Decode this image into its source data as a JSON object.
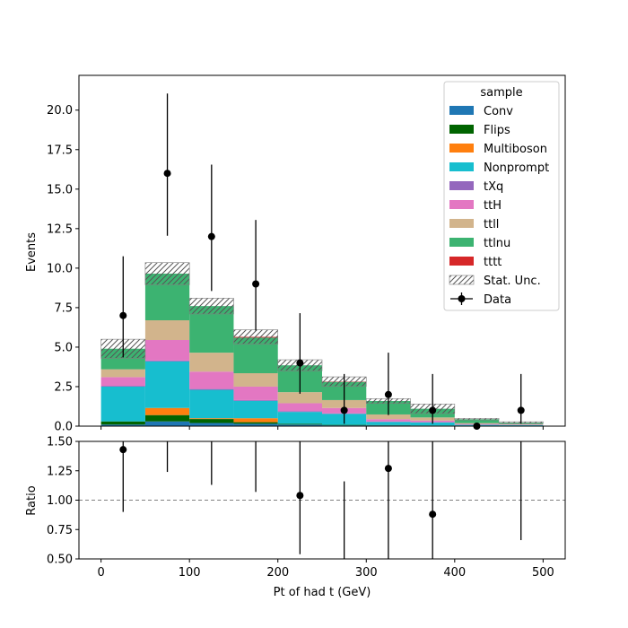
{
  "chart_data": [
    {
      "type": "bar",
      "stacked": true,
      "histogram": true,
      "bin_edges": [
        0,
        50,
        100,
        150,
        200,
        250,
        300,
        350,
        400,
        450,
        500
      ],
      "xlim": [
        -25,
        525
      ],
      "ylim": [
        0,
        22.2
      ],
      "xlabel": "",
      "ylabel": "Events",
      "yticks": [
        0.0,
        2.5,
        5.0,
        7.5,
        10.0,
        12.5,
        15.0,
        17.5,
        20.0
      ],
      "ytick_labels": [
        "0.0",
        "2.5",
        "5.0",
        "7.5",
        "10.0",
        "12.5",
        "15.0",
        "17.5",
        "20.0"
      ],
      "grid": false,
      "legend_title": "sample",
      "legend_position": "top-right",
      "stat_unc_label": "Stat. Unc.",
      "data_label": "Data",
      "series": [
        {
          "name": "Conv",
          "color": "#1f77b4",
          "values": [
            0.1,
            0.3,
            0.2,
            0.15,
            0.1,
            0.05,
            0.05,
            0.03,
            0.02,
            0.01
          ]
        },
        {
          "name": "Flips",
          "color": "#006400",
          "values": [
            0.2,
            0.4,
            0.25,
            0.1,
            0.05,
            0.03,
            0.02,
            0.01,
            0.01,
            0.0
          ]
        },
        {
          "name": "Multiboson",
          "color": "#ff7f0e",
          "values": [
            0.0,
            0.45,
            0.05,
            0.25,
            0.0,
            0.0,
            0.0,
            0.0,
            0.0,
            0.0
          ]
        },
        {
          "name": "Nonprompt",
          "color": "#17becf",
          "values": [
            2.2,
            2.95,
            1.8,
            1.1,
            0.75,
            0.7,
            0.2,
            0.2,
            0.05,
            0.05
          ]
        },
        {
          "name": "tXq",
          "color": "#9467bd",
          "values": [
            0.05,
            0.05,
            0.05,
            0.05,
            0.05,
            0.02,
            0.02,
            0.01,
            0.01,
            0.01
          ]
        },
        {
          "name": "ttH",
          "color": "#e377c2",
          "values": [
            0.55,
            1.3,
            1.1,
            0.85,
            0.5,
            0.35,
            0.15,
            0.1,
            0.05,
            0.03
          ]
        },
        {
          "name": "ttll",
          "color": "#d2b48c",
          "values": [
            0.5,
            1.25,
            1.2,
            0.85,
            0.7,
            0.5,
            0.3,
            0.2,
            0.05,
            0.03
          ]
        },
        {
          "name": "ttlnu",
          "color": "#3cb371",
          "values": [
            1.3,
            2.95,
            2.95,
            2.25,
            1.7,
            1.15,
            0.85,
            0.55,
            0.25,
            0.1
          ]
        },
        {
          "name": "tttt",
          "color": "#d62728",
          "values": [
            0.0,
            0.0,
            0.0,
            0.05,
            0.0,
            0.02,
            0.0,
            0.0,
            0.0,
            0.0
          ]
        }
      ],
      "stat_unc": [
        0.6,
        0.7,
        0.5,
        0.45,
        0.35,
        0.3,
        0.15,
        0.3,
        0.05,
        0.05
      ],
      "data": {
        "x": [
          25,
          75,
          125,
          175,
          225,
          275,
          325,
          375,
          425,
          475
        ],
        "y": [
          7,
          16,
          12,
          9,
          4,
          1,
          2,
          1,
          0,
          1
        ],
        "err_low": [
          2.65,
          3.95,
          3.45,
          2.95,
          1.95,
          0.85,
          1.3,
          0.85,
          0.0,
          0.85
        ],
        "err_high": [
          3.75,
          5.05,
          4.55,
          4.05,
          3.15,
          2.3,
          2.65,
          2.3,
          0.0,
          2.3
        ]
      }
    },
    {
      "type": "scatter",
      "xlim": [
        -25,
        525
      ],
      "ylim": [
        0.5,
        1.5
      ],
      "xlabel": "Pt of had t (GeV)",
      "ylabel": "Ratio",
      "xticks": [
        0,
        100,
        200,
        300,
        400,
        500
      ],
      "xtick_labels": [
        "0",
        "100",
        "200",
        "300",
        "400",
        "500"
      ],
      "yticks": [
        0.5,
        0.75,
        1.0,
        1.25,
        1.5
      ],
      "ytick_labels": [
        "0.50",
        "0.75",
        "1.00",
        "1.25",
        "1.50"
      ],
      "reference_line": 1.0,
      "grid": false,
      "points": {
        "x": [
          25,
          75,
          125,
          175,
          225,
          275,
          325,
          375,
          475
        ],
        "y": [
          1.43,
          null,
          null,
          null,
          1.04,
          null,
          1.27,
          0.88,
          null
        ],
        "err_low": [
          0.53,
          null,
          null,
          null,
          0.5,
          null,
          0.77,
          0.38,
          null
        ],
        "err_high": [
          0.6,
          null,
          null,
          null,
          0.8,
          null,
          0.93,
          1.12,
          null
        ],
        "bar_low": [
          null,
          1.24,
          1.13,
          1.07,
          null,
          0.5,
          null,
          null,
          0.66
        ],
        "bar_high": [
          null,
          1.5,
          1.5,
          1.5,
          null,
          1.16,
          null,
          null,
          1.5
        ]
      }
    }
  ]
}
